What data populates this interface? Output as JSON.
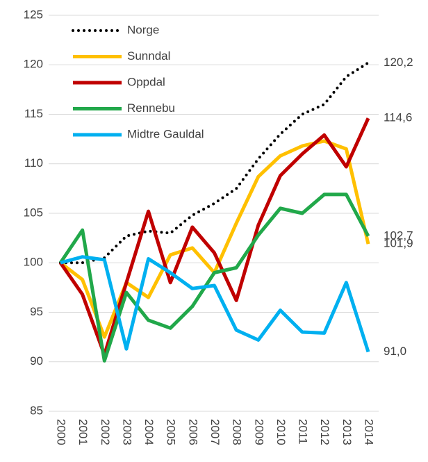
{
  "chart_data": {
    "type": "line",
    "x": [
      2000,
      2001,
      2002,
      2003,
      2004,
      2005,
      2006,
      2007,
      2008,
      2009,
      2010,
      2011,
      2012,
      2013,
      2014
    ],
    "xlim": [
      2000,
      2014
    ],
    "ylim": [
      85,
      125
    ],
    "yticks": [
      85,
      90,
      95,
      100,
      105,
      110,
      115,
      120,
      125
    ],
    "grid": true,
    "legend": "top-left",
    "series": [
      {
        "name": "Norge",
        "color": "#000000",
        "dash": "dotted",
        "values": [
          100,
          100,
          100.5,
          102.7,
          103.2,
          103.0,
          104.8,
          106.0,
          107.5,
          110.5,
          113.0,
          115.0,
          116.0,
          118.8,
          120.2
        ],
        "value_labels": [
          null,
          null,
          null,
          null,
          null,
          null,
          null,
          null,
          null,
          null,
          null,
          null,
          null,
          null,
          "120,2"
        ]
      },
      {
        "name": "Sunndal",
        "color": "#ffc000",
        "values": [
          100,
          98.3,
          92.5,
          98.0,
          96.5,
          100.8,
          101.5,
          99.0,
          104.0,
          108.7,
          110.8,
          111.8,
          112.3,
          111.5,
          101.9
        ],
        "value_labels": [
          null,
          null,
          null,
          null,
          null,
          null,
          null,
          null,
          null,
          null,
          null,
          null,
          null,
          null,
          "101,9"
        ]
      },
      {
        "name": "Oppdal",
        "color": "#c00000",
        "values": [
          100,
          96.8,
          90.7,
          98.0,
          105.2,
          98.0,
          103.6,
          101.0,
          96.2,
          103.8,
          108.8,
          111.0,
          112.9,
          109.7,
          114.6
        ],
        "value_labels": [
          null,
          null,
          null,
          null,
          null,
          null,
          null,
          null,
          null,
          null,
          null,
          null,
          null,
          null,
          "114,6"
        ]
      },
      {
        "name": "Rennebu",
        "color": "#21a84a",
        "values": [
          100,
          103.3,
          90.1,
          97.0,
          94.2,
          93.4,
          95.6,
          99.0,
          99.5,
          102.8,
          105.5,
          105.0,
          106.9,
          106.9,
          102.7
        ],
        "value_labels": [
          null,
          null,
          null,
          null,
          null,
          null,
          null,
          null,
          null,
          null,
          null,
          null,
          null,
          null,
          "102,7"
        ]
      },
      {
        "name": "Midtre Gauldal",
        "color": "#00b0f0",
        "values": [
          100,
          100.6,
          100.3,
          91.3,
          100.4,
          99.0,
          97.4,
          97.7,
          93.2,
          92.2,
          95.2,
          93.0,
          92.9,
          98.0,
          91.0
        ],
        "value_labels": [
          null,
          null,
          null,
          null,
          null,
          null,
          null,
          null,
          null,
          null,
          null,
          null,
          null,
          null,
          "91,0"
        ]
      }
    ]
  }
}
